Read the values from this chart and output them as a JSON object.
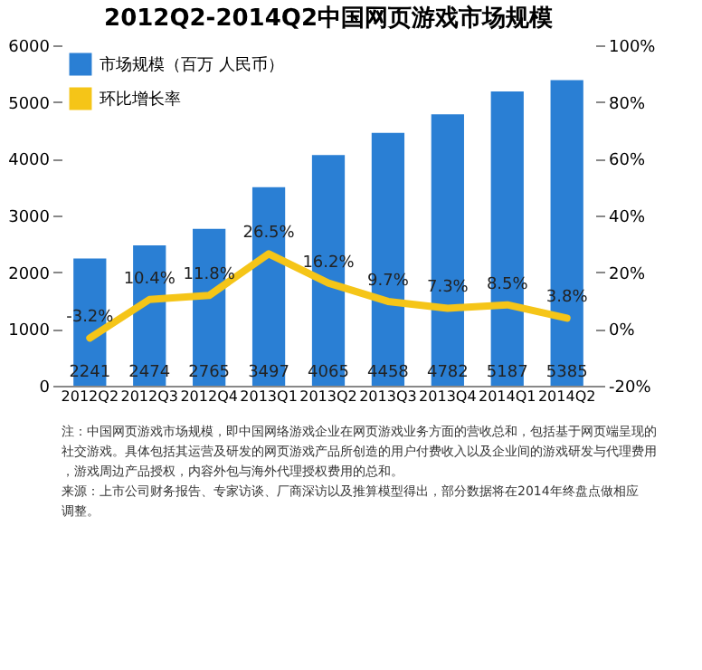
{
  "chart_data": {
    "type": "bar",
    "title": "2012Q2-2014Q2中国网页游戏市场规模",
    "categories": [
      "2012Q2",
      "2012Q3",
      "2012Q4",
      "2013Q1",
      "2013Q2",
      "2013Q3",
      "2013Q4",
      "2014Q1",
      "2014Q2"
    ],
    "series": [
      {
        "name": "市场规模（百万 人民币）",
        "color": "#2a7fd4",
        "values": [
          2241,
          2474,
          2765,
          3497,
          4065,
          4458,
          4782,
          5187,
          5385
        ],
        "data_labels": true
      },
      {
        "name": "环比增长率",
        "type": "line",
        "axis": "y2",
        "color": "#f5c518",
        "values": [
          -3.2,
          10.4,
          11.8,
          26.5,
          16.2,
          9.7,
          7.3,
          8.5,
          3.8
        ],
        "value_labels": [
          "-3.2%",
          "10.4%",
          "11.8%",
          "26.5%",
          "16.2%",
          "9.7%",
          "7.3%",
          "8.5%",
          "3.8%"
        ]
      }
    ],
    "ylim": [
      0,
      6000
    ],
    "yticks": [
      0,
      1000,
      2000,
      3000,
      4000,
      5000,
      6000
    ],
    "y2lim": [
      -20,
      100
    ],
    "y2ticks": [
      {
        "value": -20,
        "label": "-20%"
      },
      {
        "value": 0,
        "label": "0%"
      },
      {
        "value": 20,
        "label": "20%"
      },
      {
        "value": 40,
        "label": "40%"
      },
      {
        "value": 60,
        "label": "60%"
      },
      {
        "value": 80,
        "label": "80%"
      },
      {
        "value": 100,
        "label": "100%"
      }
    ],
    "grid": false,
    "legend": "top left",
    "marker": "none",
    "line_style": "solid",
    "annotations": [
      "注：中国网页游戏市场规模，即中国网络游戏企业在网页游戏业务方面的营收总和，包括基于网页端呈现的社交游戏。具体包括其运营及研发的网页游戏产品所创造的用户付费收入以及企业间的游戏研发与代理费用，游戏周边产品授权，内容外包与海外代理授权费用的总和。",
      "来源：上市公司财务报告、专家访谈、厂商深访以及推算模型得出，部分数据将在2014年终盘点做相应调整。"
    ]
  }
}
